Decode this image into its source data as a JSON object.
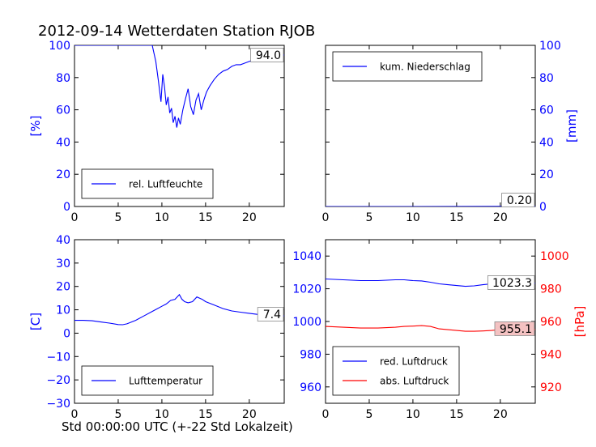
{
  "title": "2012-09-14 Wetterdaten Station RJOB",
  "xlabel": "Std 00:00:00 UTC (+-22 Std Lokalzeit)",
  "colors": {
    "blue": "#0000ff",
    "red": "#ff0000",
    "black": "#000000"
  },
  "chart_data": [
    {
      "id": "humidity",
      "type": "line",
      "xlim": [
        0,
        24
      ],
      "ylim": [
        0,
        100
      ],
      "xticks": [
        0,
        5,
        10,
        15,
        20
      ],
      "yticks": [
        0,
        20,
        40,
        60,
        80,
        100
      ],
      "ylabel": "[%]",
      "legend": "bottom-left",
      "series": [
        {
          "name": "rel. Luftfeuchte",
          "color": "#0000ff",
          "x": [
            0,
            8.9,
            9.3,
            9.6,
            9.9,
            10.1,
            10.3,
            10.5,
            10.7,
            10.9,
            11.1,
            11.3,
            11.5,
            11.7,
            11.9,
            12.1,
            12.4,
            12.7,
            13.0,
            13.3,
            13.6,
            13.9,
            14.2,
            14.5,
            14.8,
            15.1,
            15.5,
            16.0,
            16.5,
            17.0,
            17.5,
            18.0,
            18.5,
            19.0,
            19.5,
            20.0,
            20.5,
            21.0,
            21.5,
            22.0,
            22.5,
            23.0,
            23.5,
            24.0
          ],
          "y": [
            100,
            100,
            90,
            78,
            65,
            82,
            74,
            63,
            68,
            58,
            61,
            52,
            56,
            49,
            55,
            51,
            60,
            67,
            73,
            62,
            57,
            66,
            70,
            60,
            66,
            71,
            75,
            79,
            82,
            84,
            85,
            87,
            88,
            88,
            89,
            90,
            91,
            92,
            92,
            93,
            93,
            94,
            94,
            94
          ]
        }
      ],
      "annotation": "94.0"
    },
    {
      "id": "precip",
      "type": "line",
      "xlim": [
        0,
        24
      ],
      "ylim": [
        0,
        100
      ],
      "xticks": [
        0,
        5,
        10,
        15,
        20
      ],
      "yticks": [
        0,
        20,
        40,
        60,
        80,
        100
      ],
      "ylabel": "[mm]",
      "legend": "top-left",
      "series": [
        {
          "name": "kum. Niederschlag",
          "color": "#0000ff",
          "x": [
            0,
            10,
            20,
            24
          ],
          "y": [
            0,
            0,
            0.1,
            0.2
          ]
        }
      ],
      "annotation": "0.20"
    },
    {
      "id": "temperature",
      "type": "line",
      "xlim": [
        0,
        24
      ],
      "ylim": [
        -30,
        40
      ],
      "xticks": [
        0,
        5,
        10,
        15,
        20
      ],
      "yticks": [
        -30,
        -20,
        -10,
        0,
        10,
        20,
        30,
        40
      ],
      "ylabel": "[C]",
      "legend": "bottom-left",
      "series": [
        {
          "name": "Lufttemperatur",
          "color": "#0000ff",
          "x": [
            0,
            1,
            2,
            3,
            4,
            5,
            5.5,
            6,
            7,
            8,
            9,
            10,
            10.5,
            11,
            11.5,
            12,
            12.3,
            12.6,
            13,
            13.5,
            14,
            14.3,
            14.6,
            15,
            16,
            17,
            18,
            19,
            20,
            21,
            22,
            23,
            24
          ],
          "y": [
            5.5,
            5.5,
            5.3,
            4.8,
            4.3,
            3.7,
            3.6,
            4.0,
            5.5,
            7.5,
            9.5,
            11.5,
            12.5,
            14,
            14.5,
            16.5,
            14.5,
            13.5,
            13,
            13.5,
            15.5,
            15,
            14.5,
            13.5,
            12,
            10.5,
            9.5,
            9,
            8.5,
            8,
            7.6,
            7.4,
            7.4
          ]
        }
      ],
      "annotation": "7.4"
    },
    {
      "id": "pressure",
      "type": "line",
      "xlim": [
        0,
        24
      ],
      "ylim": [
        950,
        1050
      ],
      "y2lim": [
        910,
        1010
      ],
      "xticks": [
        0,
        5,
        10,
        15,
        20
      ],
      "yticks": [
        960,
        980,
        1000,
        1020,
        1040
      ],
      "y2ticks": [
        920,
        940,
        960,
        980,
        1000
      ],
      "y2label": "[hPa]",
      "legend": "bottom-left",
      "series": [
        {
          "name": "red. Luftdruck",
          "color": "#0000ff",
          "axis": "left",
          "x": [
            0,
            2,
            4,
            6,
            8,
            9,
            10,
            11,
            12,
            13,
            14,
            15,
            16,
            17,
            18,
            19,
            20,
            21,
            22,
            23,
            24
          ],
          "y": [
            1026,
            1025.5,
            1025,
            1025,
            1025.5,
            1025.5,
            1025,
            1024.8,
            1024,
            1023,
            1022.5,
            1022,
            1021.5,
            1021.8,
            1022.5,
            1023,
            1023.3,
            1023.2,
            1023.3,
            1023.3,
            1023.3
          ]
        },
        {
          "name": "abs. Luftdruck",
          "color": "#ff0000",
          "axis": "right",
          "x": [
            0,
            2,
            4,
            6,
            8,
            9,
            10,
            11,
            12,
            13,
            14,
            15,
            16,
            17,
            18,
            19,
            20,
            21,
            22,
            23,
            24
          ],
          "y": [
            957,
            956.5,
            956,
            956,
            956.5,
            957,
            957.2,
            957.5,
            957,
            955.5,
            955,
            954.5,
            954,
            954,
            954.2,
            954.5,
            955,
            955,
            955.1,
            955.1,
            955.1
          ]
        }
      ],
      "annotations": [
        "1023.3",
        "955.1"
      ]
    }
  ]
}
